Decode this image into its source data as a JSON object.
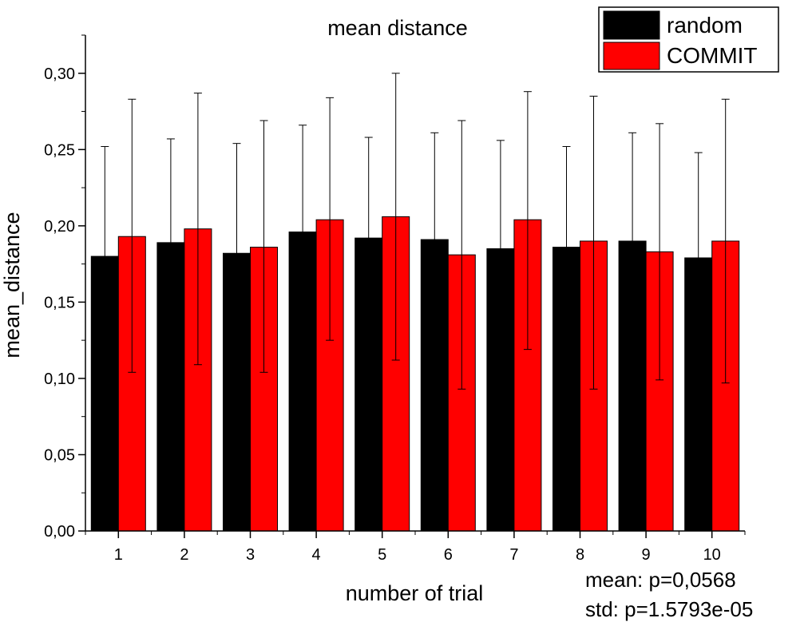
{
  "chart_data": {
    "type": "bar",
    "title": "mean distance",
    "xlabel": "number of trial",
    "ylabel": "mean_distance",
    "categories": [
      "1",
      "2",
      "3",
      "4",
      "5",
      "6",
      "7",
      "8",
      "9",
      "10"
    ],
    "ylim": [
      0,
      0.325
    ],
    "yticks": [
      "0,00",
      "0,05",
      "0,10",
      "0,15",
      "0,20",
      "0,25",
      "0,30"
    ],
    "ytick_values": [
      0,
      0.05,
      0.1,
      0.15,
      0.2,
      0.25,
      0.3
    ],
    "series": [
      {
        "name": "random",
        "color": "#000000",
        "values": [
          0.18,
          0.189,
          0.182,
          0.196,
          0.192,
          0.191,
          0.185,
          0.186,
          0.19,
          0.179
        ],
        "error_upper": [
          0.252,
          0.257,
          0.254,
          0.266,
          0.258,
          0.261,
          0.256,
          0.252,
          0.261,
          0.248
        ]
      },
      {
        "name": "COMMIT",
        "color": "#ff0000",
        "values": [
          0.193,
          0.198,
          0.186,
          0.204,
          0.206,
          0.181,
          0.204,
          0.19,
          0.183,
          0.19
        ],
        "error_upper": [
          0.283,
          0.287,
          0.269,
          0.284,
          0.3,
          0.269,
          0.288,
          0.285,
          0.267,
          0.283
        ],
        "error_lower": [
          0.104,
          0.109,
          0.104,
          0.125,
          0.112,
          0.093,
          0.119,
          0.093,
          0.099,
          0.097
        ]
      }
    ],
    "legend_position": "top-right",
    "grid": false,
    "annotations": [
      "mean: p=0,0568",
      "std: p=1.5793e-05"
    ]
  }
}
